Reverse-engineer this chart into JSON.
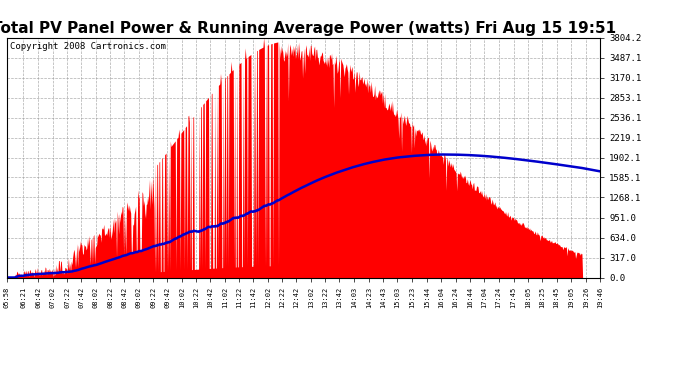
{
  "title": "Total PV Panel Power & Running Average Power (watts) Fri Aug 15 19:51",
  "copyright": "Copyright 2008 Cartronics.com",
  "yticks": [
    0.0,
    317.0,
    634.0,
    951.0,
    1268.1,
    1585.1,
    1902.1,
    2219.1,
    2536.1,
    2853.1,
    3170.1,
    3487.1,
    3804.2
  ],
  "ymax": 3804.2,
  "ymin": 0.0,
  "pv_color": "#ff0000",
  "avg_color": "#0000cc",
  "background_color": "#ffffff",
  "grid_color": "#999999",
  "title_fontsize": 11,
  "copyright_fontsize": 6.5,
  "xtick_labels": [
    "05:58",
    "06:21",
    "06:42",
    "07:02",
    "07:22",
    "07:42",
    "08:02",
    "08:22",
    "08:42",
    "09:02",
    "09:22",
    "09:42",
    "10:02",
    "10:22",
    "10:42",
    "11:02",
    "11:22",
    "11:42",
    "12:02",
    "12:22",
    "12:42",
    "13:02",
    "13:22",
    "13:42",
    "14:03",
    "14:23",
    "14:43",
    "15:03",
    "15:23",
    "15:44",
    "16:04",
    "16:24",
    "16:44",
    "17:04",
    "17:24",
    "17:45",
    "18:05",
    "18:25",
    "18:45",
    "19:05",
    "19:26",
    "19:46"
  ]
}
